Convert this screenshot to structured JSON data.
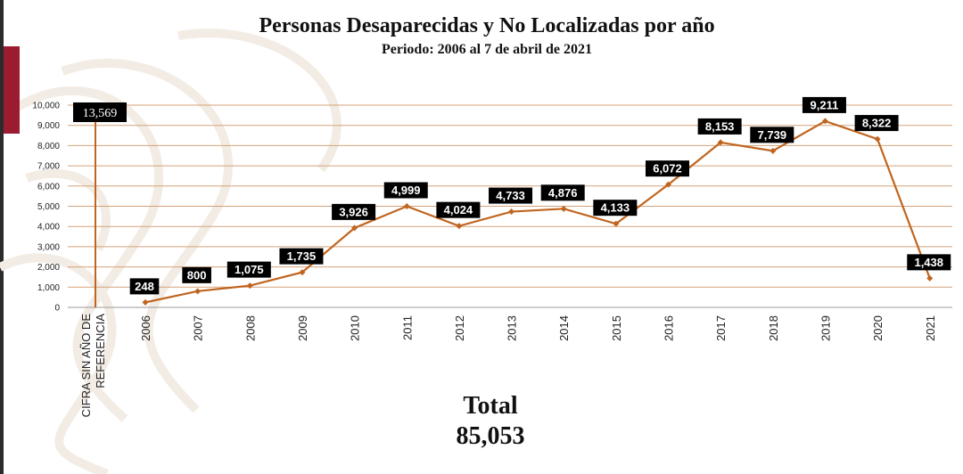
{
  "title": "Personas Desaparecidas y No Localizadas por año",
  "subtitle": "Periodo: 2006 al 7 de abril de 2021",
  "total": {
    "label": "Total",
    "value": "85,053"
  },
  "colors": {
    "line": "#c0651f",
    "grid": "#d4a27a",
    "label_bg": "#000000",
    "accent": "#9b1b30"
  },
  "chart_data": {
    "type": "line",
    "title": "Personas Desaparecidas y No Localizadas por año",
    "subtitle": "Periodo: 2006 al 7 de abril de 2021",
    "categories": [
      "2006",
      "2007",
      "2008",
      "2009",
      "2010",
      "2011",
      "2012",
      "2013",
      "2014",
      "2015",
      "2016",
      "2017",
      "2018",
      "2019",
      "2020",
      "2021"
    ],
    "values": [
      248,
      800,
      1075,
      1735,
      3926,
      4999,
      4024,
      4733,
      4876,
      4133,
      6072,
      8153,
      7739,
      9211,
      8322,
      1438
    ],
    "data_labels": [
      "248",
      "800",
      "1,075",
      "1,735",
      "3,926",
      "4,999",
      "4,024",
      "4,733",
      "4,876",
      "4,133",
      "6,072",
      "8,153",
      "7,739",
      "9,211",
      "8,322",
      "1,438"
    ],
    "reference": {
      "category": "CIFRA SIN AÑO DE REFERENCIA",
      "category_lines": [
        "CIFRA SIN AÑO DE",
        "REFERENCIA"
      ],
      "value": 13569,
      "label": "13,569"
    },
    "yticks": [
      "0",
      "1,000",
      "2,000",
      "3,000",
      "4,000",
      "5,000",
      "6,000",
      "7,000",
      "8,000",
      "9,000",
      "10,000"
    ],
    "ylim": [
      0,
      10000
    ],
    "grid": true,
    "legend": "none"
  }
}
